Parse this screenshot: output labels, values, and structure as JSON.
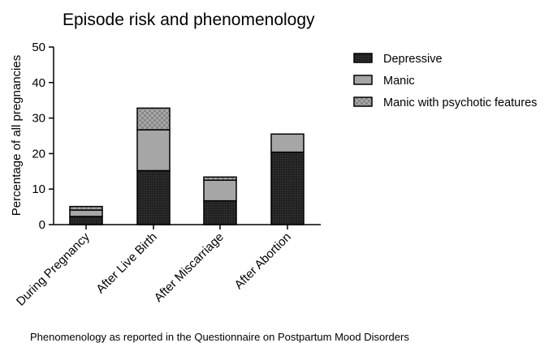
{
  "chart_data": {
    "type": "bar",
    "stacked": true,
    "title": "Episode risk and phenomenology",
    "ylabel": "Percentage of all pregnancies",
    "xlabel": "",
    "ylim": [
      0,
      50
    ],
    "yticks": [
      0,
      10,
      20,
      30,
      40,
      50
    ],
    "grid": false,
    "legend_position": "right",
    "categories": [
      "During Pregnancy",
      "After Live Birth",
      "After Miscarriage",
      "After Abortion"
    ],
    "series": [
      {
        "name": "Depressive",
        "values": [
          2.3,
          15.2,
          6.7,
          20.4
        ],
        "color": "#1a1a1a",
        "pattern": "dark-crosshatch"
      },
      {
        "name": "Manic",
        "values": [
          1.8,
          11.5,
          5.8,
          5.1
        ],
        "color": "#a3a3a3",
        "pattern": "solid-gray"
      },
      {
        "name": "Manic with psychotic features",
        "values": [
          1.0,
          6.1,
          0.9,
          0.0
        ],
        "color": "#9a9a9a",
        "pattern": "gray-checker"
      }
    ],
    "caption": "Phenomenology as reported in the Questionnaire on Postpartum Mood Disorders"
  }
}
